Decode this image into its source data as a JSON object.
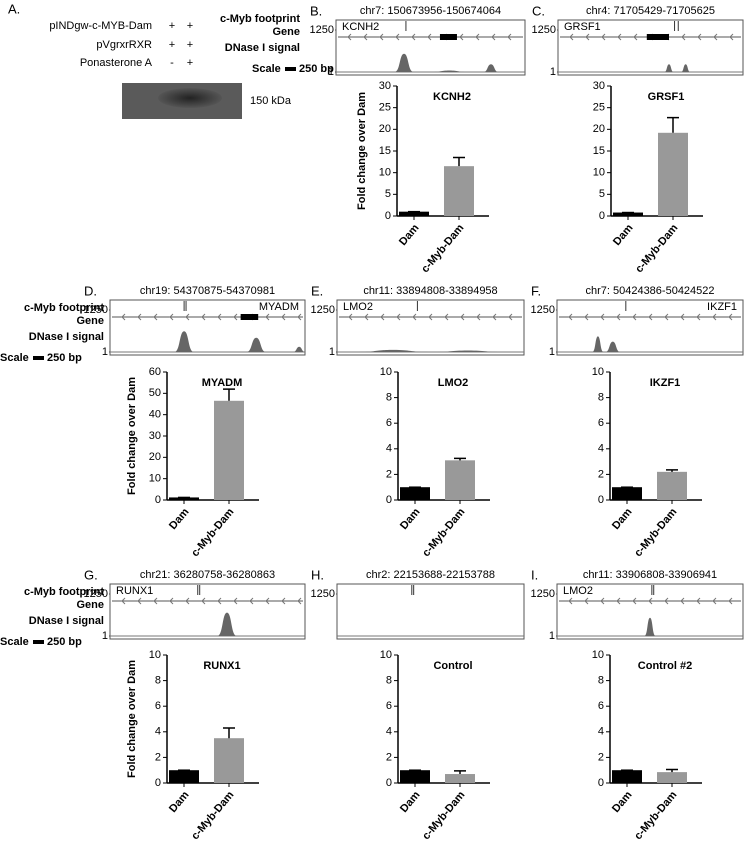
{
  "panel_a": {
    "label": "A.",
    "rows": [
      {
        "name": "pINDgw-c-MYB-Dam",
        "lanes": [
          "+",
          "+"
        ]
      },
      {
        "name": "pVgrxrRXR",
        "lanes": [
          "+",
          "+"
        ]
      },
      {
        "name": "Ponasterone A",
        "lanes": [
          "-",
          "+"
        ]
      }
    ],
    "marker": "150 kDa"
  },
  "track_legend": {
    "footprint": "c-Myb footprint",
    "gene": "Gene",
    "dnase": "DNase I signal",
    "scale": "Scale",
    "scale_size": "250 bp"
  },
  "chart_data": [
    {
      "type": "bar",
      "panel": "B.",
      "region": "chr7: 150673956-150674064",
      "gene": "KCNH2",
      "track_yticks": [
        1250,
        1
      ],
      "title": "KCNH2",
      "ylabel": "Fold change over Dam",
      "categories": [
        "Dam",
        "c-Myb-Dam"
      ],
      "values": [
        1,
        11.5
      ],
      "errors": [
        0,
        2
      ],
      "colors": [
        "#000000",
        "#999999"
      ],
      "ylim": [
        0,
        30
      ],
      "yticks": [
        0,
        5,
        10,
        15,
        20,
        25,
        30
      ]
    },
    {
      "type": "bar",
      "panel": "C.",
      "region": "chr4: 71705429-71705625",
      "gene": "GRSF1",
      "track_yticks": [
        1250,
        1
      ],
      "title": "GRSF1",
      "categories": [
        "Dam",
        "c-Myb-Dam"
      ],
      "values": [
        0.8,
        19.2
      ],
      "errors": [
        0,
        3.5
      ],
      "colors": [
        "#000000",
        "#999999"
      ],
      "ylim": [
        0,
        30
      ],
      "yticks": [
        0,
        5,
        10,
        15,
        20,
        25,
        30
      ]
    },
    {
      "type": "bar",
      "panel": "D.",
      "region": "chr19: 54370875-54370981",
      "gene": "MYADM",
      "track_yticks": [
        1250,
        1
      ],
      "title": "MYADM",
      "ylabel": "Fold change over Dam",
      "categories": [
        "Dam",
        "c-Myb-Dam"
      ],
      "values": [
        1.2,
        46.5
      ],
      "errors": [
        0,
        5.5
      ],
      "colors": [
        "#000000",
        "#999999"
      ],
      "ylim": [
        0,
        60
      ],
      "yticks": [
        0,
        10,
        20,
        30,
        40,
        50,
        60
      ]
    },
    {
      "type": "bar",
      "panel": "E.",
      "region": "chr11: 33894808-33894958",
      "gene": "LMO2",
      "track_yticks": [
        1250,
        1
      ],
      "title": "LMO2",
      "categories": [
        "Dam",
        "c-Myb-Dam"
      ],
      "values": [
        1,
        3.1
      ],
      "errors": [
        0,
        0.15
      ],
      "colors": [
        "#000000",
        "#999999"
      ],
      "ylim": [
        0,
        10
      ],
      "yticks": [
        0,
        2,
        4,
        6,
        8,
        10
      ]
    },
    {
      "type": "bar",
      "panel": "F.",
      "region": "chr7: 50424386-50424522",
      "gene": "IKZF1",
      "track_yticks": [
        1250,
        1
      ],
      "title": "IKZF1",
      "categories": [
        "Dam",
        "c-Myb-Dam"
      ],
      "values": [
        1,
        2.2
      ],
      "errors": [
        0,
        0.15
      ],
      "colors": [
        "#000000",
        "#999999"
      ],
      "ylim": [
        0,
        10
      ],
      "yticks": [
        0,
        2,
        4,
        6,
        8,
        10
      ]
    },
    {
      "type": "bar",
      "panel": "G.",
      "region": "chr21: 36280758-36280863",
      "gene": "RUNX1",
      "track_yticks": [
        1250,
        1
      ],
      "title": "RUNX1",
      "ylabel": "Fold change over Dam",
      "categories": [
        "Dam",
        "c-Myb-Dam"
      ],
      "values": [
        1,
        3.5
      ],
      "errors": [
        0,
        0.8
      ],
      "colors": [
        "#000000",
        "#999999"
      ],
      "ylim": [
        0,
        10
      ],
      "yticks": [
        0,
        2,
        4,
        6,
        8,
        10
      ]
    },
    {
      "type": "bar",
      "panel": "H.",
      "region": "chr2: 22153688-22153788",
      "track_yticks": [
        1250
      ],
      "title": "Control",
      "categories": [
        "Dam",
        "c-Myb-Dam"
      ],
      "values": [
        1,
        0.7
      ],
      "errors": [
        0,
        0.25
      ],
      "colors": [
        "#000000",
        "#999999"
      ],
      "ylim": [
        0,
        10
      ],
      "yticks": [
        0,
        2,
        4,
        6,
        8,
        10
      ]
    },
    {
      "type": "bar",
      "panel": "I.",
      "region": "chr11: 33906808-33906941",
      "gene": "LMO2",
      "track_yticks": [
        1250,
        1
      ],
      "title": "Control #2",
      "categories": [
        "Dam",
        "c-Myb-Dam"
      ],
      "values": [
        1,
        0.85
      ],
      "errors": [
        0,
        0.2
      ],
      "colors": [
        "#000000",
        "#999999"
      ],
      "ylim": [
        0,
        10
      ],
      "yticks": [
        0,
        2,
        4,
        6,
        8,
        10
      ]
    }
  ]
}
